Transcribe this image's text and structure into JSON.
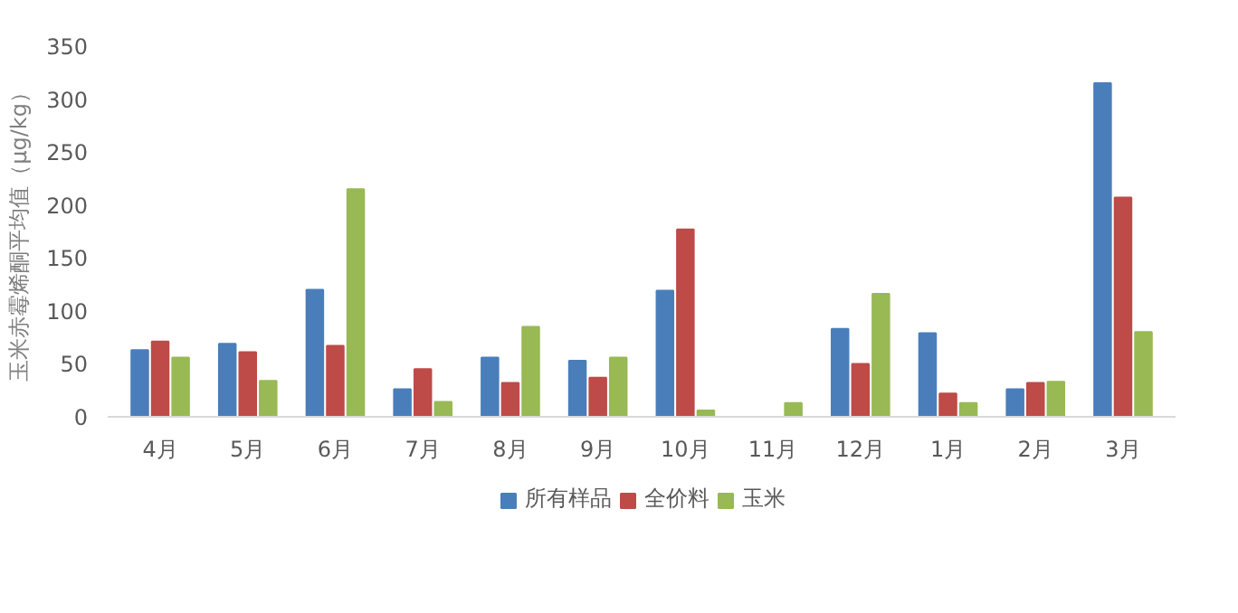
{
  "chart_data": {
    "type": "bar",
    "ylabel": "玉米赤霉烯酮平均值（μg/kg）",
    "categories": [
      "4月",
      "5月",
      "6月",
      "7月",
      "8月",
      "9月",
      "10月",
      "11月",
      "12月",
      "1月",
      "2月",
      "3月"
    ],
    "series": [
      {
        "name": "所有样品",
        "color": "#4a7ebb",
        "values": [
          63,
          69,
          120,
          26,
          56,
          53,
          119,
          null,
          83,
          79,
          26,
          315
        ]
      },
      {
        "name": "全价料",
        "color": "#be4b48",
        "values": [
          71,
          61,
          67,
          45,
          32,
          37,
          177,
          null,
          50,
          22,
          32,
          207
        ]
      },
      {
        "name": "玉米",
        "color": "#98b954",
        "values": [
          56,
          34,
          215,
          14,
          85,
          56,
          6,
          13,
          116,
          13,
          33,
          80
        ]
      }
    ],
    "ylim": [
      0,
      350
    ],
    "yticks": [
      0,
      50,
      100,
      150,
      200,
      250,
      300,
      350
    ],
    "grid": false,
    "legend": "bottom"
  }
}
